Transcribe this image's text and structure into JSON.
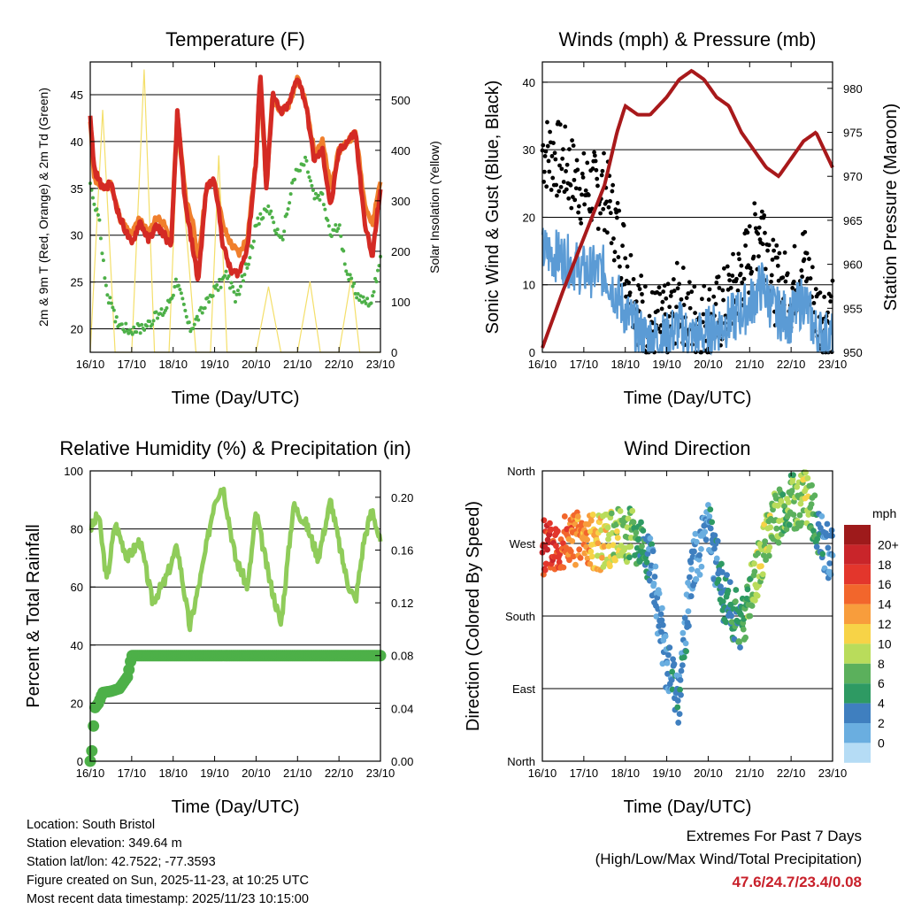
{
  "days": [
    "16/10",
    "17/10",
    "18/10",
    "19/10",
    "20/10",
    "21/10",
    "22/10",
    "23/10"
  ],
  "chart_data": [
    {
      "type": "line",
      "title": "Temperature (F)",
      "xlabel": "Time (Day/UTC)",
      "ylabel": "2m & 9m T (Red, Orange) & 2m Td (Green)",
      "y2label": "Solar Insolation (Yellow)",
      "ylim": [
        17.5,
        48.5
      ],
      "yticks": [
        20,
        25,
        30,
        35,
        40,
        45
      ],
      "y2lim": [
        0,
        575
      ],
      "y2ticks": [
        0,
        100,
        200,
        300,
        400,
        500
      ],
      "series": [
        {
          "name": "9m T",
          "color": "#f07f2c",
          "axis": "left",
          "x": [
            0,
            0.1,
            0.3,
            0.5,
            0.7,
            0.9,
            1.0,
            1.2,
            1.4,
            1.6,
            1.8,
            1.95,
            2.1,
            2.3,
            2.5,
            2.6,
            2.8,
            3.0,
            3.2,
            3.4,
            3.6,
            3.8,
            4.0,
            4.1,
            4.25,
            4.4,
            4.5,
            4.6,
            4.8,
            5.0,
            5.2,
            5.4,
            5.6,
            5.8,
            6.0,
            6.2,
            6.4,
            6.6,
            6.8,
            7.0
          ],
          "y": [
            42,
            36,
            35,
            35.5,
            32,
            30.5,
            30,
            32,
            30,
            32,
            31,
            29,
            43,
            34,
            31,
            27,
            35,
            36,
            31,
            29,
            28,
            30,
            38,
            47,
            35,
            45,
            44,
            43,
            44,
            47,
            44,
            39,
            40,
            35,
            39,
            40,
            41,
            34,
            31,
            36
          ]
        },
        {
          "name": "2m T",
          "color": "#d42a24",
          "axis": "left",
          "x": [
            0,
            0.1,
            0.3,
            0.5,
            0.7,
            0.9,
            1.0,
            1.2,
            1.4,
            1.6,
            1.8,
            1.95,
            2.1,
            2.3,
            2.5,
            2.6,
            2.8,
            3.0,
            3.2,
            3.4,
            3.6,
            3.8,
            4.0,
            4.1,
            4.25,
            4.4,
            4.5,
            4.6,
            4.8,
            5.0,
            5.2,
            5.4,
            5.6,
            5.8,
            6.0,
            6.2,
            6.4,
            6.6,
            6.8,
            7.0
          ],
          "y": [
            42.5,
            37,
            35,
            35.5,
            32,
            30,
            29,
            31.5,
            29.5,
            31,
            30,
            28.5,
            43,
            33,
            28,
            25,
            35,
            36,
            29,
            26,
            26,
            29,
            38,
            47.5,
            35,
            45,
            44,
            43,
            44,
            47,
            44,
            38,
            39,
            33,
            39,
            40,
            41,
            32,
            27.5,
            35
          ]
        },
        {
          "name": "2m Td",
          "color": "#4db048",
          "axis": "left",
          "x": [
            0,
            0.2,
            0.4,
            0.6,
            0.9,
            1.2,
            1.5,
            1.8,
            2.1,
            2.4,
            2.7,
            3.0,
            3.3,
            3.5,
            3.8,
            4.0,
            4.3,
            4.6,
            4.9,
            5.2,
            5.4,
            5.6,
            5.8,
            6.0,
            6.2,
            6.4,
            6.6,
            6.8,
            7.0
          ],
          "y": [
            35,
            32,
            24,
            21,
            20,
            20,
            21,
            22,
            25,
            20,
            22,
            24,
            26,
            23,
            27,
            31,
            33,
            29,
            36,
            38,
            34,
            34,
            30,
            31,
            26,
            24,
            23,
            23,
            28
          ]
        },
        {
          "name": "Solar Insolation",
          "color": "#f4df6a",
          "axis": "right",
          "x": [
            0,
            0.3,
            0.6,
            1.0,
            1.3,
            1.55,
            1.9,
            2.1,
            2.2,
            2.55,
            2.9,
            3.1,
            3.3,
            3.6,
            4.0,
            4.3,
            4.6,
            5.0,
            5.3,
            5.55,
            6.0,
            6.3,
            6.5,
            7.0
          ],
          "y": [
            0,
            480,
            0,
            0,
            560,
            0,
            0,
            410,
            360,
            0,
            0,
            390,
            0,
            0,
            0,
            130,
            0,
            0,
            140,
            0,
            0,
            150,
            0,
            0
          ]
        }
      ]
    },
    {
      "type": "scatter",
      "title": "Winds (mph) & Pressure (mb)",
      "xlabel": "Time (Day/UTC)",
      "ylabel": "Sonic Wind & Gust (Blue, Black)",
      "y2label": "Station Pressure (Maroon)",
      "ylim": [
        0,
        43
      ],
      "yticks": [
        0,
        10,
        20,
        30,
        40
      ],
      "y2lim": [
        950,
        983
      ],
      "y2ticks": [
        950,
        955,
        960,
        965,
        970,
        975,
        980
      ],
      "series": [
        {
          "name": "Wind",
          "color": "#5b9bd5",
          "x": [
            0,
            0.5,
            1.0,
            1.5,
            2.0,
            2.3,
            2.6,
            3.0,
            3.3,
            3.6,
            4.0,
            4.3,
            4.6,
            5.0,
            5.3,
            5.6,
            6.0,
            6.3,
            6.6,
            7.0
          ],
          "y": [
            15,
            14,
            12,
            12,
            6,
            3,
            2,
            2,
            4,
            2,
            3,
            4,
            5,
            7,
            10,
            6,
            5,
            8,
            3,
            2
          ]
        },
        {
          "name": "Gust",
          "color": "#000000",
          "x": [
            0,
            0.5,
            1.0,
            1.5,
            2.0,
            2.3,
            2.6,
            3.0,
            3.3,
            3.6,
            4.0,
            4.3,
            4.6,
            5.0,
            5.3,
            5.6,
            6.0,
            6.3,
            6.6,
            7.0
          ],
          "y": [
            30,
            28,
            24,
            24,
            14,
            7,
            4,
            4,
            8,
            5,
            5,
            6,
            9,
            14,
            20,
            10,
            9,
            14,
            6,
            5
          ]
        },
        {
          "name": "Station Pressure",
          "color": "#a8191b",
          "axis": "right",
          "x": [
            0,
            0.5,
            1.0,
            1.5,
            1.8,
            2.0,
            2.3,
            2.6,
            3.0,
            3.3,
            3.6,
            3.9,
            4.2,
            4.5,
            4.8,
            5.1,
            5.4,
            5.7,
            6.0,
            6.3,
            6.6,
            7.0
          ],
          "y": [
            950.5,
            957,
            963,
            969,
            975,
            978,
            977,
            977,
            979,
            981,
            982,
            981,
            979,
            978,
            975,
            973,
            971,
            970,
            972,
            974,
            975,
            971
          ]
        }
      ]
    },
    {
      "type": "line",
      "title": "Relative Humidity (%) & Precipitation (in)",
      "xlabel": "Time (Day/UTC)",
      "ylabel": "Percent & Total Rainfall",
      "ylim": [
        0,
        100
      ],
      "yticks": [
        0,
        20,
        40,
        60,
        80,
        100
      ],
      "y2lim": [
        0,
        0.22
      ],
      "y2ticks": [
        "0.00",
        "0.04",
        "0.08",
        "0.12",
        "0.16",
        "0.20"
      ],
      "series": [
        {
          "name": "Relative Humidity",
          "color": "#8fcc5a",
          "x": [
            0,
            0.2,
            0.4,
            0.6,
            0.9,
            1.2,
            1.5,
            1.8,
            2.1,
            2.4,
            2.7,
            3.0,
            3.2,
            3.5,
            3.8,
            4.0,
            4.3,
            4.6,
            4.9,
            5.2,
            5.5,
            5.8,
            6.0,
            6.2,
            6.4,
            6.6,
            6.8,
            7.0
          ],
          "y": [
            80,
            85,
            62,
            82,
            70,
            76,
            55,
            62,
            74,
            46,
            66,
            90,
            95,
            70,
            60,
            86,
            64,
            47,
            88,
            82,
            70,
            90,
            75,
            62,
            55,
            76,
            87,
            75
          ]
        },
        {
          "name": "Total Precipitation",
          "color": "#4db048",
          "axis": "right",
          "x": [
            0,
            0.05,
            0.1,
            0.2,
            0.3,
            0.5,
            0.7,
            0.9,
            1.0,
            1.05,
            2.0,
            3.0,
            4.0,
            5.0,
            6.0,
            7.0
          ],
          "y": [
            0,
            0.01,
            0.04,
            0.044,
            0.052,
            0.053,
            0.055,
            0.064,
            0.08,
            0.08,
            0.08,
            0.08,
            0.08,
            0.08,
            0.08,
            0.08
          ]
        }
      ]
    },
    {
      "type": "scatter",
      "title": "Wind Direction",
      "xlabel": "Time (Day/UTC)",
      "ylabel": "Direction (Colored By Speed)",
      "yticks": [
        "North",
        "East",
        "South",
        "West",
        "North"
      ],
      "legend_title": "mph",
      "legend_labels": [
        "20+",
        "18",
        "16",
        "14",
        "12",
        "10",
        "8",
        "6",
        "4",
        "2",
        "0"
      ],
      "legend_colors": [
        "#9e1a1b",
        "#c9252a",
        "#e3362c",
        "#f2662c",
        "#f89d3c",
        "#f7d347",
        "#b9dc5b",
        "#5bb05c",
        "#2e9a63",
        "#3f7fbf",
        "#6aaee0",
        "#b5dcf5"
      ],
      "series": [
        {
          "name": "Direction",
          "x": [
            0.2,
            0.8,
            1.4,
            2.2,
            2.6,
            3.0,
            3.3,
            3.6,
            4.0,
            4.4,
            4.8,
            5.2,
            5.6,
            6.0,
            6.4,
            6.8
          ],
          "y": [
            265,
            275,
            270,
            285,
            250,
            120,
            80,
            240,
            290,
            200,
            170,
            240,
            300,
            320,
            330,
            260
          ],
          "speed": [
            18,
            15,
            12,
            8,
            4,
            3,
            4,
            3,
            3,
            5,
            6,
            10,
            9,
            8,
            10,
            3
          ]
        }
      ]
    }
  ],
  "info": {
    "location": "Location: South Bristol",
    "elevation": "Station elevation: 349.64 m",
    "latlon": "Station lat/lon: 42.7522; -77.3593",
    "created": "Figure created on Sun, 2025-11-23, at 10:25 UTC",
    "recent": "Most recent data timestamp: 2025/11/23 10:15:00"
  },
  "extremes": {
    "title": "Extremes For Past 7 Days",
    "subtitle": "(High/Low/Max Wind/Total Precipitation)",
    "values": "47.6/24.7/23.4/0.08"
  }
}
